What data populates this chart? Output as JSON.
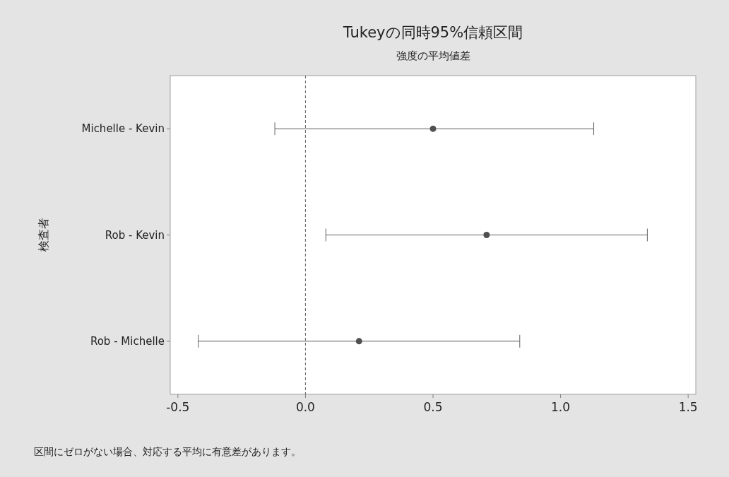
{
  "chart_data": {
    "type": "scatter",
    "orientation": "horizontal",
    "title": "Tukeyの同時95%信頼区間",
    "subtitle": "強度の平均値差",
    "ylabel": "検査者",
    "categories": [
      "Michelle - Kevin",
      "Rob - Kevin",
      "Rob - Michelle"
    ],
    "values": [
      0.5,
      0.71,
      0.21
    ],
    "errors": [
      [
        -0.12,
        1.13
      ],
      [
        0.08,
        1.34
      ],
      [
        -0.42,
        0.84
      ]
    ],
    "color": "#505050",
    "marker": "circle",
    "xlim": [
      -0.53,
      1.53
    ],
    "xticks": [
      -0.5,
      {
        "value": 0,
        "label": "0.0"
      },
      0.5,
      {
        "value": 1,
        "label": "1.0"
      },
      1.5
    ],
    "ref_lines": [
      {
        "axis": "x",
        "value": 0,
        "line_style": "dashed"
      }
    ],
    "annotations": [
      "区間にゼロがない場合、対応する平均に有意差があります。"
    ]
  }
}
